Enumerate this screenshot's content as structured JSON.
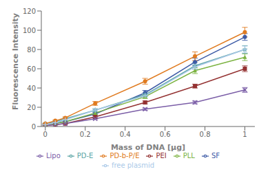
{
  "chart_data": {
    "type": "line",
    "title": "",
    "xlabel": "Mass of DNA [μg]",
    "ylabel": "Fluorescence Intensity",
    "x": [
      0,
      0.05,
      0.1,
      0.25,
      0.5,
      0.75,
      1.0
    ],
    "xlim": [
      -0.02,
      1.05
    ],
    "xticks": [
      0,
      0.2,
      0.4,
      0.6,
      0.8,
      1
    ],
    "ylim": [
      0,
      120
    ],
    "yticks": [
      0,
      20,
      40,
      60,
      80,
      100,
      120
    ],
    "grid": false,
    "legend": "bottom",
    "series": [
      {
        "name": "SF",
        "color": "#3C5AA6",
        "marker": "circle",
        "line_style": "solid",
        "values": [
          2,
          4,
          5,
          13,
          35,
          67,
          93
        ],
        "yerr": [
          0.3,
          0.5,
          0.7,
          1.5,
          2.5,
          4.0,
          3.5
        ]
      },
      {
        "name": "PEI",
        "color": "#943232",
        "marker": "square",
        "line_style": "solid",
        "values": [
          1,
          2,
          3,
          10,
          25,
          42,
          60
        ],
        "yerr": [
          0.2,
          0.3,
          0.5,
          1.0,
          1.5,
          2.0,
          3.0
        ]
      },
      {
        "name": "PLL",
        "color": "#7CB342",
        "marker": "triangle",
        "line_style": "solid",
        "values": [
          2,
          3,
          5,
          14,
          31,
          58,
          72
        ],
        "yerr": [
          0.2,
          0.4,
          0.7,
          1.5,
          2.0,
          3.0,
          3.5
        ]
      },
      {
        "name": "Lipo",
        "color": "#7B5EA7",
        "marker": "x",
        "line_style": "solid",
        "values": [
          1,
          2,
          3,
          8,
          18,
          25,
          38
        ],
        "yerr": [
          0.2,
          0.3,
          0.4,
          0.8,
          1.2,
          1.5,
          2.5
        ]
      },
      {
        "name": "PD-E",
        "color": "#5BA4A4",
        "marker": "star",
        "line_style": "solid",
        "values": [
          3,
          5,
          8,
          17,
          33,
          63,
          80
        ],
        "yerr": [
          0.3,
          0.5,
          0.8,
          1.5,
          2.0,
          3.5,
          4.0
        ]
      },
      {
        "name": "PD-b-P/E",
        "color": "#E07B20",
        "marker": "circle",
        "line_style": "solid",
        "values": [
          3,
          6,
          9,
          24,
          47,
          73,
          98
        ],
        "yerr": [
          0.3,
          0.6,
          1.0,
          2.0,
          3.0,
          4.5,
          5.0
        ]
      },
      {
        "name": "free plasmid",
        "color": "#AAC9E8",
        "marker": "plus",
        "line_style": "solid",
        "values": [
          2,
          4,
          7,
          17,
          32,
          62,
          80
        ],
        "yerr": [
          0.2,
          0.4,
          0.7,
          1.3,
          1.8,
          2.5,
          3.5
        ]
      }
    ]
  }
}
